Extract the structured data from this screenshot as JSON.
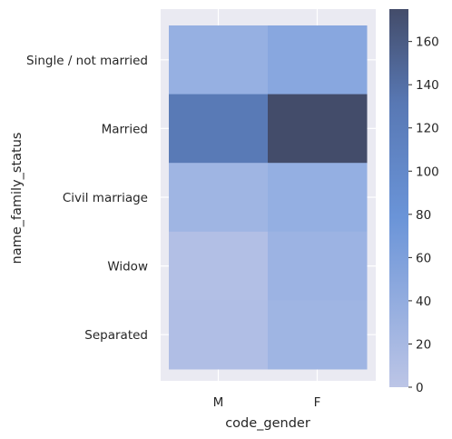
{
  "chart_data": {
    "type": "heatmap",
    "title": "",
    "xlabel": "code_gender",
    "ylabel": "name_family_status",
    "x_categories": [
      "M",
      "F"
    ],
    "y_categories": [
      "Single / not married",
      "Married",
      "Civil marriage",
      "Widow",
      "Separated"
    ],
    "values": [
      [
        44,
        55
      ],
      [
        128,
        175
      ],
      [
        33,
        45
      ],
      [
        12,
        37
      ],
      [
        14,
        33
      ]
    ],
    "colorbar": {
      "vmin": 0,
      "vmax": 175,
      "ticks": [
        "0",
        "20",
        "40",
        "60",
        "80",
        "100",
        "120",
        "140",
        "160"
      ]
    },
    "grid": true,
    "colors": {
      "background": "#eaeaf2",
      "grid": "#ffffff",
      "low": "#b9c4e6",
      "high": "#434c6a"
    }
  }
}
